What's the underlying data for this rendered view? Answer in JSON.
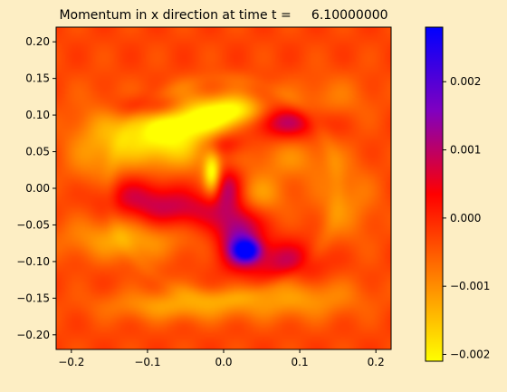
{
  "figure": {
    "background": "#fdeec4",
    "title": "Momentum in x direction at time t =     6.10000000"
  },
  "chart_data": {
    "type": "heatmap",
    "title": "Momentum in x direction at time t =     6.10000000",
    "xlabel": "",
    "ylabel": "",
    "xlim": [
      -0.22,
      0.22
    ],
    "ylim": [
      -0.22,
      0.22
    ],
    "x_ticks": [
      -0.2,
      -0.1,
      0.0,
      0.1,
      0.2
    ],
    "x_tick_labels": [
      "−0.2",
      "−0.1",
      "0.0",
      "0.1",
      "0.2"
    ],
    "y_ticks": [
      0.2,
      0.15,
      0.1,
      0.05,
      0.0,
      -0.05,
      -0.1,
      -0.15,
      -0.2
    ],
    "y_tick_labels": [
      "0.20",
      "0.15",
      "0.10",
      "0.05",
      "0.00",
      "−0.05",
      "−0.10",
      "−0.15",
      "−0.20"
    ],
    "grid": false,
    "colorbar": {
      "range": [
        -0.0021,
        0.0028
      ],
      "ticks": [
        0.002,
        0.001,
        0.0,
        -0.001,
        -0.002
      ],
      "tick_labels": [
        "0.002",
        "0.001",
        "0.000",
        "−0.001",
        "−0.002"
      ],
      "colormap": [
        "#ffff00",
        "#ff8000",
        "#ff0000",
        "#8000c0",
        "#0000ff"
      ]
    },
    "features": [
      {
        "x": -0.08,
        "y": 0.07,
        "sx": 0.05,
        "sy": 0.03,
        "v": -0.0018
      },
      {
        "x": -0.03,
        "y": 0.1,
        "sx": 0.04,
        "sy": 0.018,
        "v": -0.0015
      },
      {
        "x": 0.02,
        "y": 0.105,
        "sx": 0.025,
        "sy": 0.015,
        "v": -0.0013
      },
      {
        "x": -0.09,
        "y": 0.11,
        "sx": 0.035,
        "sy": 0.012,
        "v": 0.0012
      },
      {
        "x": 0.08,
        "y": 0.09,
        "sx": 0.04,
        "sy": 0.015,
        "v": 0.0013
      },
      {
        "x": 0.0,
        "y": 0.06,
        "sx": 0.02,
        "sy": 0.012,
        "v": 0.0009
      },
      {
        "x": -0.12,
        "y": -0.01,
        "sx": 0.04,
        "sy": 0.02,
        "v": 0.0009
      },
      {
        "x": -0.05,
        "y": -0.03,
        "sx": 0.045,
        "sy": 0.018,
        "v": 0.001
      },
      {
        "x": 0.02,
        "y": -0.065,
        "sx": 0.02,
        "sy": 0.03,
        "v": 0.0017
      },
      {
        "x": 0.03,
        "y": -0.085,
        "sx": 0.012,
        "sy": 0.01,
        "v": 0.0026
      },
      {
        "x": 0.08,
        "y": -0.1,
        "sx": 0.035,
        "sy": 0.02,
        "v": 0.0011
      },
      {
        "x": 0.09,
        "y": 0.04,
        "sx": 0.04,
        "sy": 0.02,
        "v": -0.0006
      },
      {
        "x": 0.04,
        "y": -0.01,
        "sx": 0.03,
        "sy": 0.02,
        "v": -0.0009
      },
      {
        "x": -0.13,
        "y": -0.07,
        "sx": 0.06,
        "sy": 0.02,
        "v": -0.0009
      },
      {
        "x": -0.06,
        "y": -0.16,
        "sx": 0.07,
        "sy": 0.015,
        "v": -0.0009
      },
      {
        "x": 0.1,
        "y": -0.15,
        "sx": 0.06,
        "sy": 0.02,
        "v": -0.0008
      },
      {
        "x": 0.14,
        "y": 0.12,
        "sx": 0.04,
        "sy": 0.025,
        "v": -0.0005
      },
      {
        "x": -0.17,
        "y": 0.05,
        "sx": 0.03,
        "sy": 0.05,
        "v": -0.0006
      },
      {
        "x": 0.16,
        "y": -0.02,
        "sx": 0.03,
        "sy": 0.04,
        "v": -0.0006
      },
      {
        "x": 0.005,
        "y": 0.0,
        "sx": 0.015,
        "sy": 0.02,
        "v": 0.0014
      },
      {
        "x": -0.015,
        "y": 0.02,
        "sx": 0.008,
        "sy": 0.02,
        "v": -0.0019
      }
    ]
  }
}
